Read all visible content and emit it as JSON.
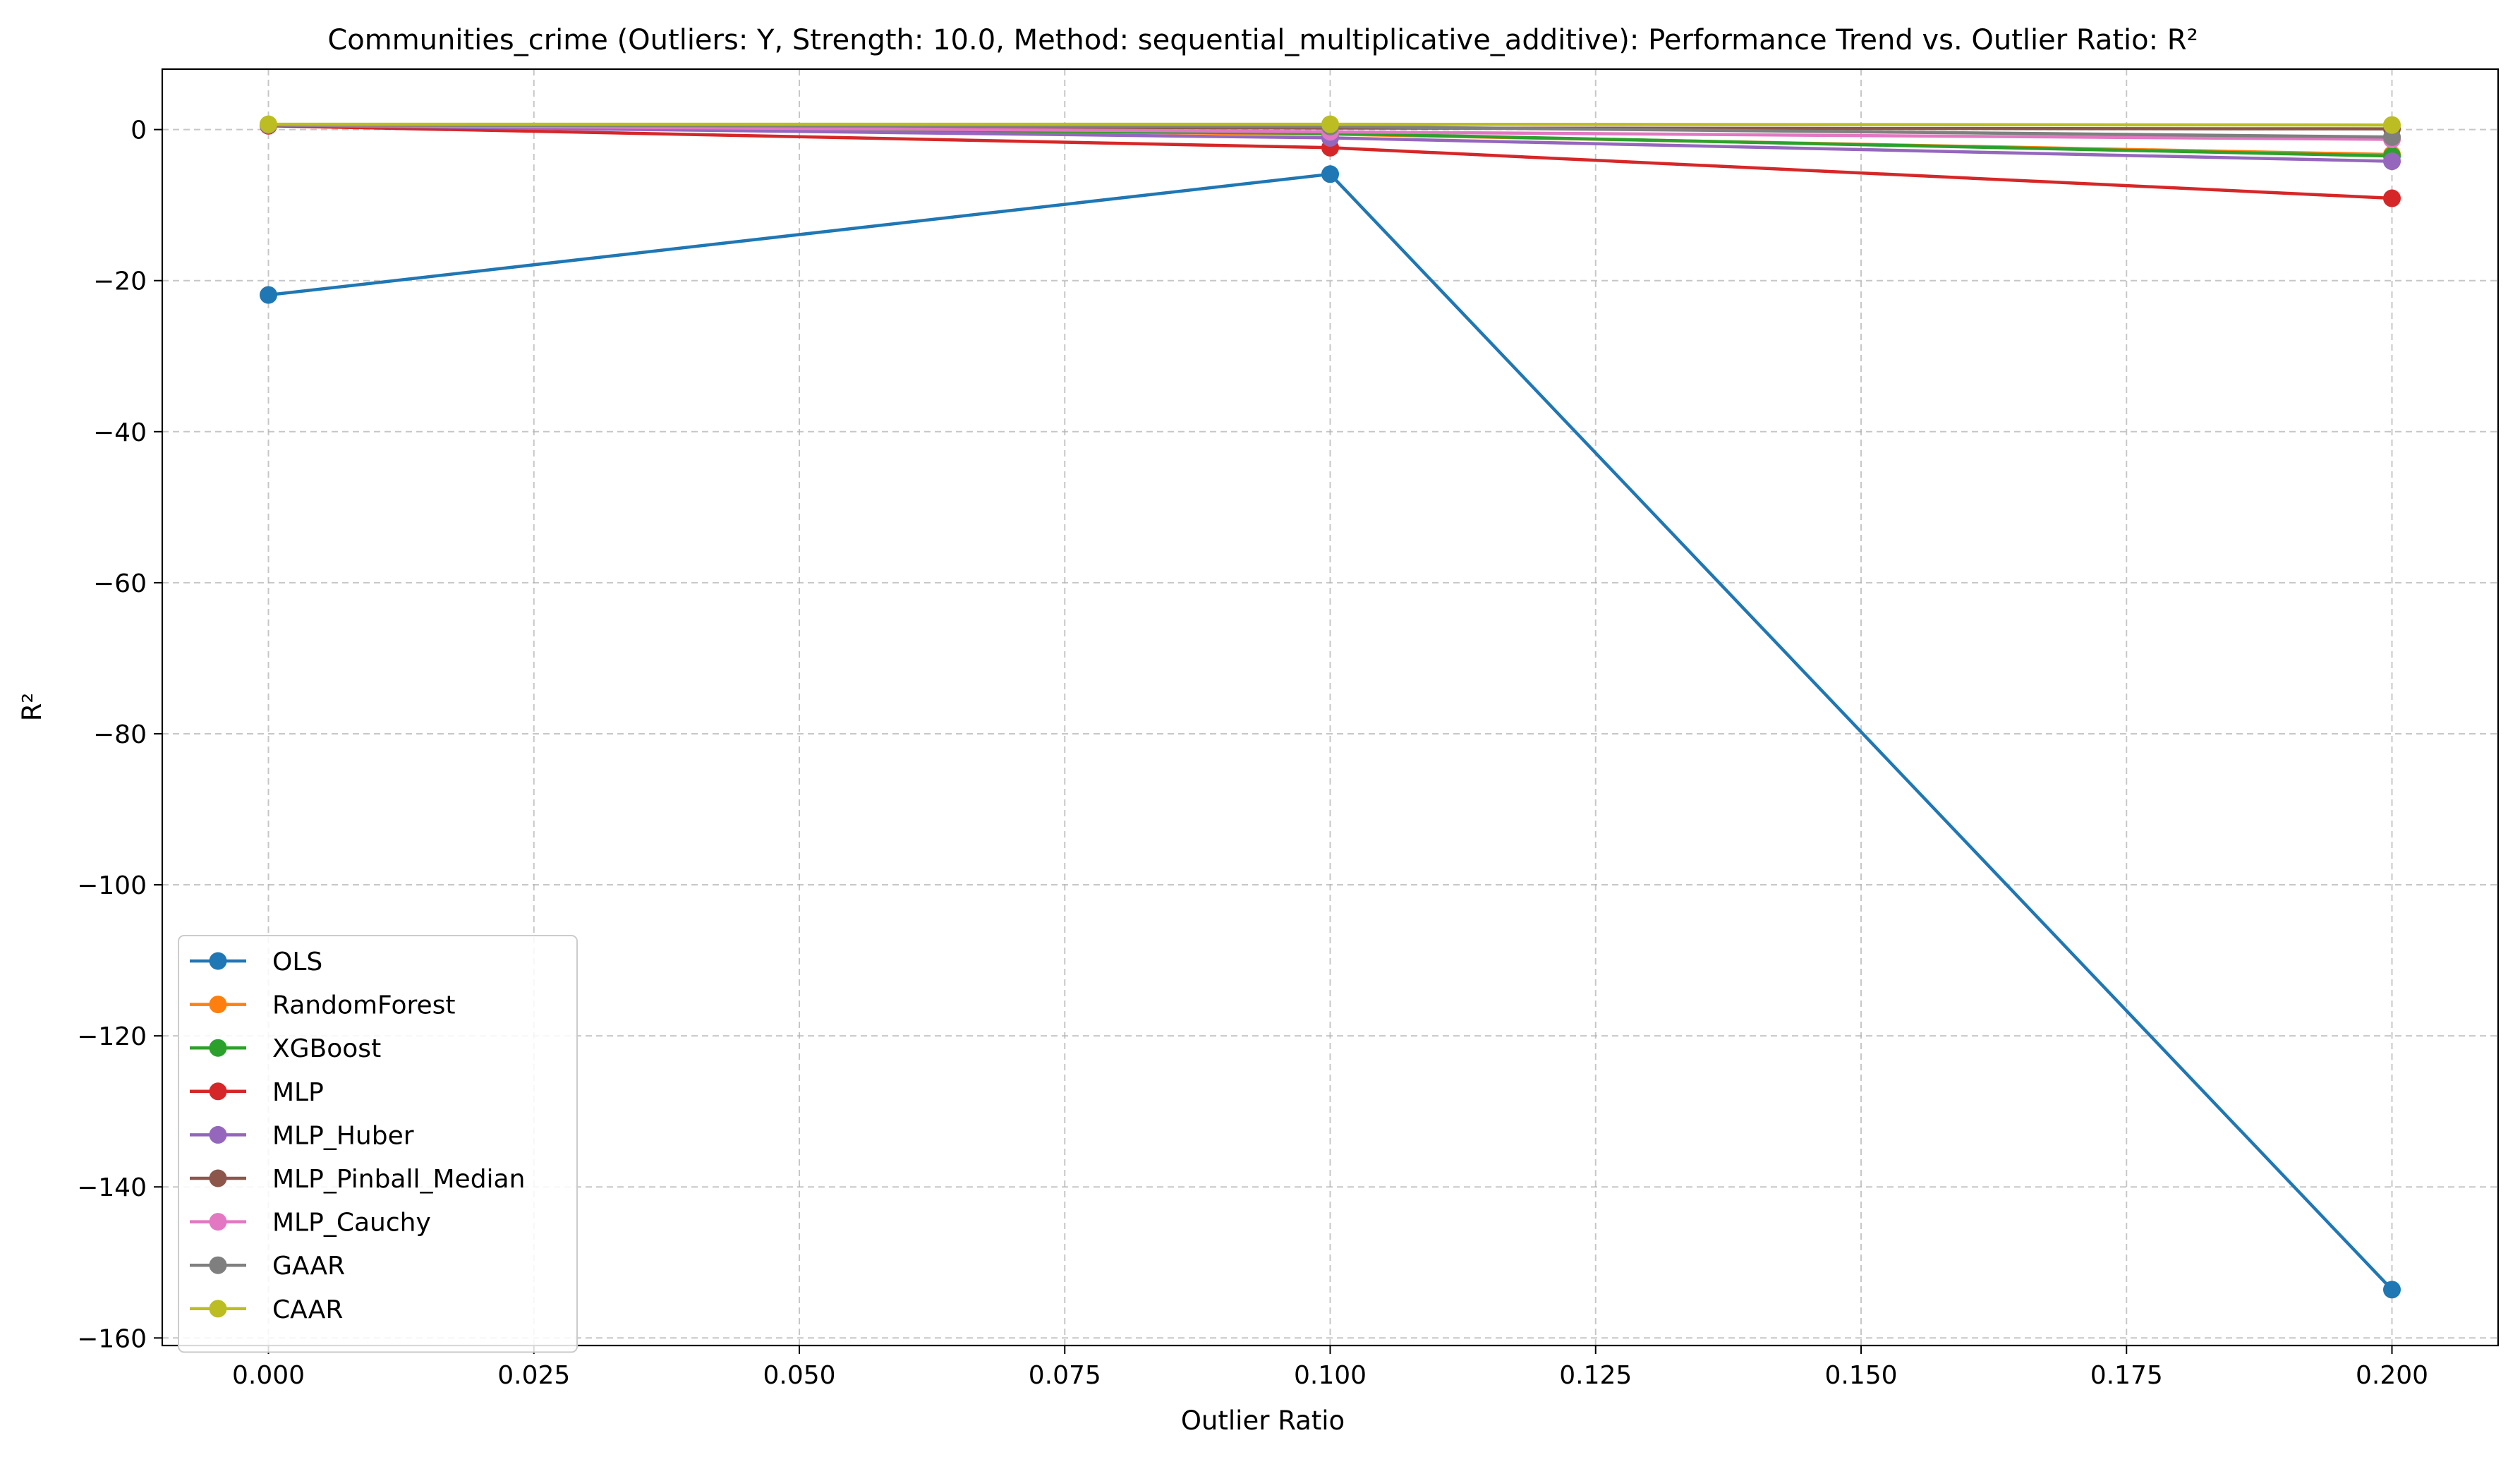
{
  "chart_data": {
    "type": "line",
    "title": "Communities_crime (Outliers: Y, Strength: 10.0, Method: sequential_multiplicative_additive): Performance Trend vs. Outlier Ratio: R²",
    "xlabel": "Outlier Ratio",
    "ylabel": "R²",
    "x": [
      0.0,
      0.1,
      0.2
    ],
    "xlim": [
      -0.01,
      0.21
    ],
    "ylim": [
      -161,
      8
    ],
    "xticks": [
      "0.000",
      "0.025",
      "0.050",
      "0.075",
      "0.100",
      "0.125",
      "0.150",
      "0.175",
      "0.200"
    ],
    "yticks": [
      "0",
      "−20",
      "−40",
      "−60",
      "−80",
      "−100",
      "−120",
      "−140",
      "−160"
    ],
    "grid": true,
    "legend_position": "lower-left",
    "series": [
      {
        "name": "OLS",
        "color": "#1f77b4",
        "values": [
          -21.9,
          -5.9,
          -153.6
        ]
      },
      {
        "name": "RandomForest",
        "color": "#ff7f0e",
        "values": [
          0.6,
          -0.6,
          -3.3
        ]
      },
      {
        "name": "XGBoost",
        "color": "#2ca02c",
        "values": [
          0.6,
          -0.5,
          -3.5
        ]
      },
      {
        "name": "MLP",
        "color": "#d62728",
        "values": [
          0.5,
          -2.4,
          -9.1
        ]
      },
      {
        "name": "MLP_Huber",
        "color": "#9467bd",
        "values": [
          0.6,
          -1.1,
          -4.2
        ]
      },
      {
        "name": "MLP_Pinball_Median",
        "color": "#8c564b",
        "values": [
          0.6,
          0.2,
          0.1
        ]
      },
      {
        "name": "MLP_Cauchy",
        "color": "#e377c2",
        "values": [
          0.6,
          -0.3,
          -1.3
        ]
      },
      {
        "name": "GAAR",
        "color": "#7f7f7f",
        "values": [
          0.6,
          0.4,
          -1.0
        ]
      },
      {
        "name": "CAAR",
        "color": "#bcbd22",
        "values": [
          0.7,
          0.7,
          0.6
        ]
      }
    ]
  }
}
